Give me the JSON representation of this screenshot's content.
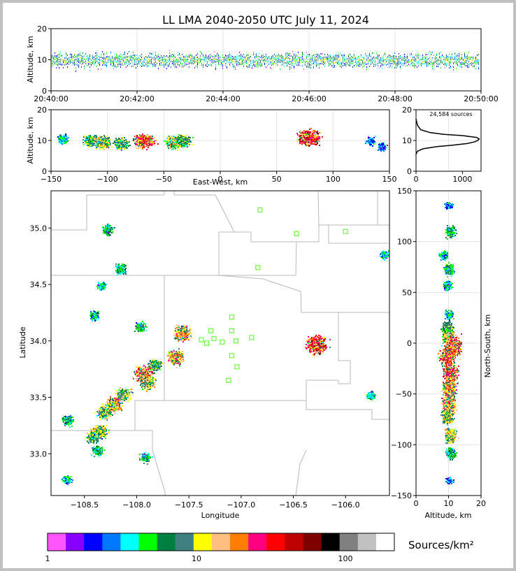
{
  "title": "LL LMA 2040-2050 UTC July 11, 2024",
  "source_count": "24,584 sources",
  "colorbar": {
    "label": "Sources/km²",
    "ticks": [
      "1",
      "10",
      "100"
    ],
    "colors": [
      "#ff55ff",
      "#8800ff",
      "#0000ff",
      "#0077ff",
      "#00ffff",
      "#00ff00",
      "#008040",
      "#408080",
      "#ffff00",
      "#ffbf80",
      "#ff8000",
      "#ff0080",
      "#ff0000",
      "#bf0000",
      "#800000",
      "#000000",
      "#808080",
      "#c0c0c0",
      "#ffffff"
    ]
  },
  "chart_data": [
    {
      "id": "time-height",
      "type": "scatter",
      "ylabel": "Altitude, km",
      "ylim": [
        0,
        20
      ],
      "yticks": [
        "0",
        "10",
        "20"
      ],
      "xticks": [
        "20:40:00",
        "20:42:00",
        "20:44:00",
        "20:46:00",
        "20:48:00",
        "20:50:00"
      ],
      "description_values": {
        "altitude_band_km": [
          5,
          15
        ],
        "altitude_peak_km": 10
      }
    },
    {
      "id": "ew-height",
      "type": "heatmap",
      "xlabel": "East-West, km",
      "ylabel": "Altitude, km",
      "xlim": [
        -150,
        150
      ],
      "ylim": [
        0,
        20
      ],
      "xticks": [
        "−150",
        "−100",
        "−50",
        "0",
        "50",
        "100",
        "150"
      ],
      "yticks": [
        "0",
        "10",
        "20"
      ],
      "clusters": [
        {
          "ew_km": -140,
          "alt_km": 10.5,
          "density": 2
        },
        {
          "ew_km": -115,
          "alt_km": 10,
          "density": 4
        },
        {
          "ew_km": -105,
          "alt_km": 9.5,
          "density": 5
        },
        {
          "ew_km": -88,
          "alt_km": 9,
          "density": 4
        },
        {
          "ew_km": -68,
          "alt_km": 10,
          "density": 7
        },
        {
          "ew_km": -42,
          "alt_km": 9.5,
          "density": 5
        },
        {
          "ew_km": -33,
          "alt_km": 10,
          "density": 4
        },
        {
          "ew_km": 78,
          "alt_km": 11,
          "density": 8
        },
        {
          "ew_km": 133,
          "alt_km": 10,
          "density": 1
        },
        {
          "ew_km": 143,
          "alt_km": 8,
          "density": 1
        }
      ]
    },
    {
      "id": "altitude-histogram",
      "type": "line",
      "xlim": [
        0,
        1400
      ],
      "ylim": [
        0,
        20
      ],
      "xticks": [
        "0",
        "1000"
      ],
      "yticks": [
        "0",
        "10",
        "20"
      ],
      "x": [
        0,
        30,
        150,
        450,
        800,
        1100,
        1250,
        1330,
        1360,
        1300,
        1000,
        600,
        300,
        100,
        30,
        0
      ],
      "y": [
        5.5,
        6.5,
        7.3,
        8,
        8.5,
        9,
        9.5,
        10,
        10.5,
        11,
        11.6,
        12,
        12.6,
        13.5,
        15,
        17
      ]
    },
    {
      "id": "plan-view",
      "type": "heatmap",
      "xlabel": "Longitude",
      "ylabel": "Latitude",
      "xlim": [
        -108.82,
        -105.58
      ],
      "ylim": [
        32.63,
        35.33
      ],
      "xticks": [
        "−108.5",
        "−108.0",
        "−107.5",
        "−107.0",
        "−106.5",
        "−106.0"
      ],
      "yticks": [
        "33.0",
        "33.5",
        "34.0",
        "34.5",
        "35.0"
      ],
      "stations": [
        {
          "lon": -106.82,
          "lat": 35.16
        },
        {
          "lon": -106.47,
          "lat": 34.95
        },
        {
          "lon": -106.0,
          "lat": 34.97
        },
        {
          "lon": -106.84,
          "lat": 34.65
        },
        {
          "lon": -107.09,
          "lat": 34.21
        },
        {
          "lon": -107.29,
          "lat": 34.09
        },
        {
          "lon": -107.09,
          "lat": 34.09
        },
        {
          "lon": -107.38,
          "lat": 34.01
        },
        {
          "lon": -107.26,
          "lat": 34.02
        },
        {
          "lon": -107.33,
          "lat": 33.98
        },
        {
          "lon": -107.18,
          "lat": 33.99
        },
        {
          "lon": -107.05,
          "lat": 34.0
        },
        {
          "lon": -106.9,
          "lat": 34.03
        },
        {
          "lon": -107.09,
          "lat": 33.87
        },
        {
          "lon": -107.04,
          "lat": 33.77
        },
        {
          "lon": -107.12,
          "lat": 33.65
        }
      ],
      "clusters": [
        {
          "lon": -108.28,
          "lat": 34.99,
          "density": 3
        },
        {
          "lon": -108.16,
          "lat": 34.64,
          "density": 3
        },
        {
          "lon": -108.34,
          "lat": 34.49,
          "density": 2
        },
        {
          "lon": -108.41,
          "lat": 34.23,
          "density": 2
        },
        {
          "lon": -107.97,
          "lat": 34.13,
          "density": 3
        },
        {
          "lon": -107.57,
          "lat": 34.07,
          "density": 6
        },
        {
          "lon": -107.63,
          "lat": 33.86,
          "density": 6
        },
        {
          "lon": -107.83,
          "lat": 33.79,
          "density": 4
        },
        {
          "lon": -107.94,
          "lat": 33.71,
          "density": 7
        },
        {
          "lon": -107.9,
          "lat": 33.63,
          "density": 5
        },
        {
          "lon": -108.13,
          "lat": 33.53,
          "density": 5
        },
        {
          "lon": -108.22,
          "lat": 33.44,
          "density": 6
        },
        {
          "lon": -108.31,
          "lat": 33.37,
          "density": 5
        },
        {
          "lon": -108.66,
          "lat": 33.3,
          "density": 3
        },
        {
          "lon": -108.36,
          "lat": 33.2,
          "density": 5
        },
        {
          "lon": -108.42,
          "lat": 33.15,
          "density": 4
        },
        {
          "lon": -108.38,
          "lat": 33.03,
          "density": 3
        },
        {
          "lon": -107.92,
          "lat": 32.97,
          "density": 3
        },
        {
          "lon": -108.67,
          "lat": 32.77,
          "density": 2
        },
        {
          "lon": -106.28,
          "lat": 33.97,
          "density": 8
        },
        {
          "lon": -105.63,
          "lat": 34.77,
          "density": 2
        },
        {
          "lon": -105.76,
          "lat": 33.52,
          "density": 2
        }
      ]
    },
    {
      "id": "ns-height",
      "type": "heatmap",
      "xlabel": "Altitude, km",
      "ylabel": "North-South, km",
      "xlim": [
        0,
        20
      ],
      "ylim": [
        -150,
        150
      ],
      "xticks": [
        "0",
        "10",
        "20"
      ],
      "yticks": [
        "−150",
        "−100",
        "−50",
        "0",
        "50",
        "100",
        "150"
      ],
      "clusters": [
        {
          "ns_km": 136,
          "alt_km": 10,
          "density": 1
        },
        {
          "ns_km": 110,
          "alt_km": 10.5,
          "density": 3
        },
        {
          "ns_km": 87,
          "alt_km": 8.5,
          "density": 2
        },
        {
          "ns_km": 73,
          "alt_km": 10,
          "density": 3
        },
        {
          "ns_km": 57,
          "alt_km": 9.5,
          "density": 2
        },
        {
          "ns_km": 28,
          "alt_km": 10,
          "density": 2
        },
        {
          "ns_km": 15,
          "alt_km": 9.5,
          "density": 4
        },
        {
          "ns_km": 5,
          "alt_km": 10,
          "density": 5
        },
        {
          "ns_km": -3,
          "alt_km": 11.5,
          "density": 7
        },
        {
          "ns_km": -13,
          "alt_km": 9.5,
          "density": 7
        },
        {
          "ns_km": -30,
          "alt_km": 10.5,
          "density": 7
        },
        {
          "ns_km": -45,
          "alt_km": 10,
          "density": 6
        },
        {
          "ns_km": -60,
          "alt_km": 10,
          "density": 6
        },
        {
          "ns_km": -72,
          "alt_km": 9.5,
          "density": 5
        },
        {
          "ns_km": -90,
          "alt_km": 10.5,
          "density": 5
        },
        {
          "ns_km": -108,
          "alt_km": 10.5,
          "density": 3
        },
        {
          "ns_km": -135,
          "alt_km": 10,
          "density": 1
        }
      ]
    }
  ]
}
